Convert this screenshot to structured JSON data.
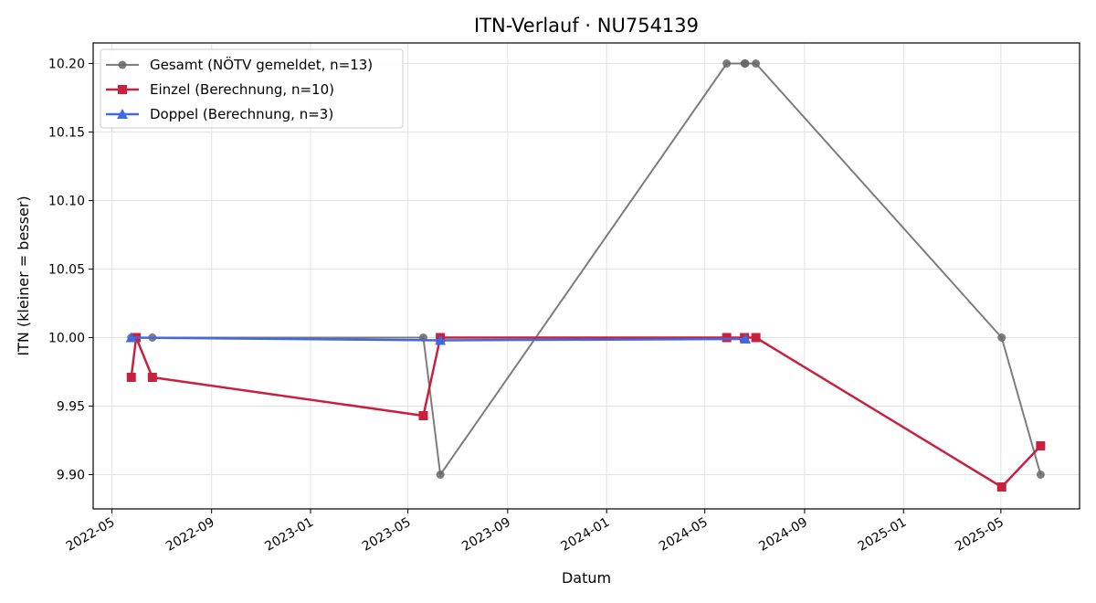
{
  "chart_data": {
    "type": "line",
    "title": "ITN-Verlauf · NU754139",
    "xlabel": "Datum",
    "ylabel": "ITN  (kleiner = besser)",
    "x_tick_labels": [
      "2022-05",
      "2022-09",
      "2023-01",
      "2023-05",
      "2023-09",
      "2024-01",
      "2024-05",
      "2024-09",
      "2025-01",
      "2025-05"
    ],
    "y_ticks": [
      9.9,
      9.95,
      10.0,
      10.05,
      10.1,
      10.15,
      10.2
    ],
    "y_tick_labels": [
      "9.90",
      "9.95",
      "10.00",
      "10.05",
      "10.10",
      "10.15",
      "10.20"
    ],
    "xlim": [
      "2022-04-08",
      "2025-08-06"
    ],
    "ylim": [
      9.875,
      10.215
    ],
    "grid": true,
    "legend_position": "upper-left",
    "series": [
      {
        "name": "Gesamt (NÖTV gemeldet, n=13)",
        "color": "#666666",
        "marker": "circle",
        "points": [
          {
            "x": "2022-05-25",
            "y": 10.0
          },
          {
            "x": "2022-05-27",
            "y": 10.0
          },
          {
            "x": "2022-06-20",
            "y": 10.0
          },
          {
            "x": "2023-05-20",
            "y": 10.0
          },
          {
            "x": "2023-06-10",
            "y": 9.9
          },
          {
            "x": "2024-05-28",
            "y": 10.2
          },
          {
            "x": "2024-06-19",
            "y": 10.2
          },
          {
            "x": "2024-06-20",
            "y": 10.2
          },
          {
            "x": "2024-07-03",
            "y": 10.2
          },
          {
            "x": "2025-05-02",
            "y": 10.0
          },
          {
            "x": "2025-06-19",
            "y": 9.9
          }
        ]
      },
      {
        "name": "Einzel (Berechnung, n=10)",
        "color": "#c8203f",
        "marker": "square",
        "points": [
          {
            "x": "2022-05-25",
            "y": 9.971
          },
          {
            "x": "2022-05-31",
            "y": 10.0
          },
          {
            "x": "2022-06-20",
            "y": 9.971
          },
          {
            "x": "2023-05-20",
            "y": 9.943
          },
          {
            "x": "2023-06-10",
            "y": 10.0
          },
          {
            "x": "2024-05-28",
            "y": 10.0
          },
          {
            "x": "2024-06-19",
            "y": 10.0
          },
          {
            "x": "2024-07-03",
            "y": 10.0
          },
          {
            "x": "2025-05-02",
            "y": 9.891
          },
          {
            "x": "2025-06-19",
            "y": 9.921
          }
        ]
      },
      {
        "name": "Doppel (Berechnung, n=3)",
        "color": "#4169e1",
        "marker": "triangle",
        "points": [
          {
            "x": "2022-05-25",
            "y": 10.0
          },
          {
            "x": "2023-06-10",
            "y": 9.998
          },
          {
            "x": "2024-06-20",
            "y": 9.999
          }
        ]
      }
    ]
  }
}
